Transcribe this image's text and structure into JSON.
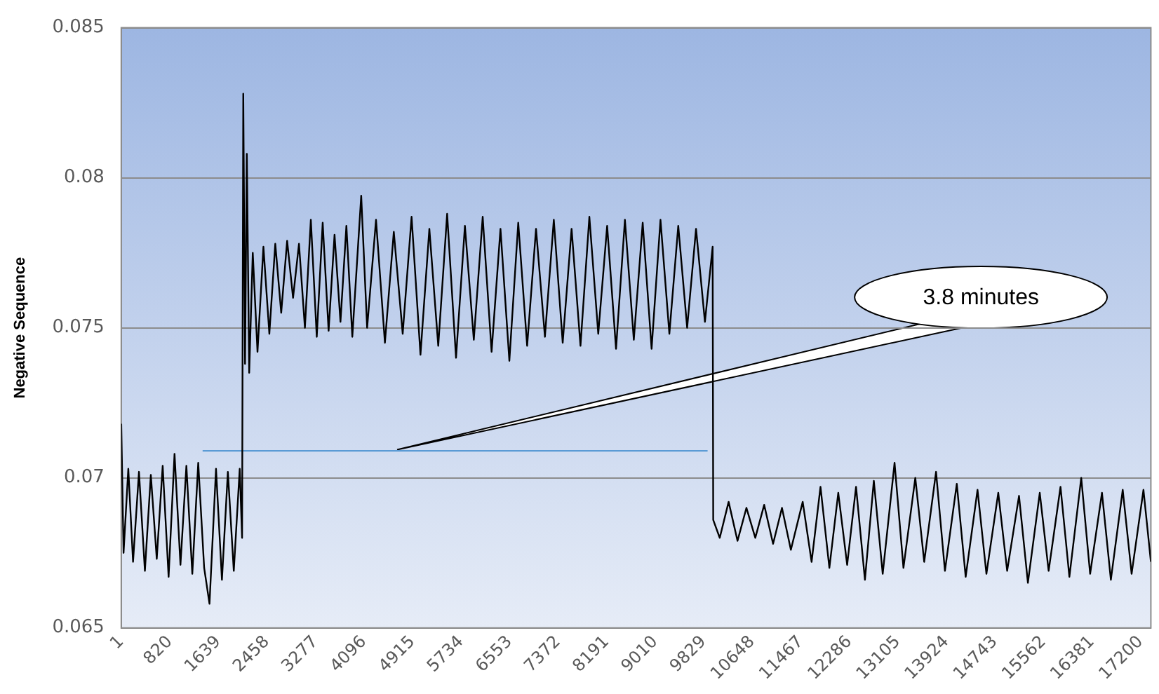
{
  "chart_data": {
    "type": "line",
    "ylabel": "Negative Sequence",
    "xlim": [
      1,
      17375
    ],
    "xticks": [
      1,
      820,
      1639,
      2458,
      3277,
      4096,
      4915,
      5734,
      6553,
      7372,
      8191,
      9010,
      9829,
      10648,
      11467,
      12286,
      13105,
      13924,
      14743,
      15562,
      16381,
      17200
    ],
    "ylim": [
      0.065,
      0.085
    ],
    "yticks": [
      0.065,
      0.07,
      0.075,
      0.08,
      0.085
    ],
    "grid": "y",
    "legend": false,
    "marker": "none",
    "series": [
      {
        "color": "#000000",
        "x": [
          1,
          40,
          120,
          200,
          300,
          400,
          500,
          600,
          700,
          800,
          900,
          1000,
          1100,
          1200,
          1300,
          1400,
          1490,
          1600,
          1700,
          1800,
          1900,
          2000,
          2040,
          2060,
          2090,
          2120,
          2160,
          2220,
          2300,
          2400,
          2500,
          2600,
          2700,
          2800,
          2900,
          3000,
          3100,
          3200,
          3300,
          3400,
          3500,
          3600,
          3700,
          3800,
          3900,
          4050,
          4150,
          4300,
          4450,
          4600,
          4750,
          4900,
          5050,
          5200,
          5350,
          5500,
          5650,
          5800,
          5950,
          6100,
          6250,
          6400,
          6550,
          6700,
          6850,
          7000,
          7150,
          7300,
          7450,
          7600,
          7750,
          7900,
          8050,
          8200,
          8350,
          8500,
          8650,
          8800,
          8950,
          9100,
          9250,
          9400,
          9550,
          9700,
          9850,
          9980,
          9990,
          10100,
          10250,
          10400,
          10550,
          10700,
          10850,
          11000,
          11150,
          11300,
          11500,
          11650,
          11800,
          11950,
          12100,
          12250,
          12400,
          12550,
          12700,
          12850,
          13050,
          13200,
          13400,
          13550,
          13750,
          13900,
          14100,
          14250,
          14450,
          14600,
          14800,
          14950,
          15150,
          15300,
          15500,
          15650,
          15850,
          16000,
          16200,
          16350,
          16550,
          16700,
          16900,
          17050,
          17250,
          17375
        ],
        "values": [
          0.0718,
          0.0675,
          0.0703,
          0.0672,
          0.0702,
          0.0669,
          0.0701,
          0.0673,
          0.0704,
          0.0667,
          0.0708,
          0.0671,
          0.0704,
          0.0668,
          0.0705,
          0.067,
          0.0658,
          0.0703,
          0.0666,
          0.0702,
          0.0669,
          0.0703,
          0.068,
          0.0828,
          0.0738,
          0.0808,
          0.0735,
          0.0775,
          0.0742,
          0.0777,
          0.0748,
          0.0778,
          0.0755,
          0.0779,
          0.076,
          0.0778,
          0.075,
          0.0786,
          0.0747,
          0.0785,
          0.0749,
          0.0781,
          0.0752,
          0.0784,
          0.0747,
          0.0794,
          0.075,
          0.0786,
          0.0745,
          0.0782,
          0.0748,
          0.0787,
          0.0741,
          0.0783,
          0.0744,
          0.0788,
          0.074,
          0.0784,
          0.0746,
          0.0787,
          0.0742,
          0.0783,
          0.0739,
          0.0785,
          0.0744,
          0.0783,
          0.0747,
          0.0786,
          0.0745,
          0.0783,
          0.0744,
          0.0787,
          0.0748,
          0.0784,
          0.0743,
          0.0786,
          0.0746,
          0.0785,
          0.0743,
          0.0786,
          0.0748,
          0.0784,
          0.075,
          0.0783,
          0.0752,
          0.0777,
          0.0686,
          0.068,
          0.0692,
          0.0679,
          0.069,
          0.068,
          0.0691,
          0.0678,
          0.069,
          0.0676,
          0.0692,
          0.0672,
          0.0697,
          0.067,
          0.0695,
          0.0671,
          0.0697,
          0.0666,
          0.0699,
          0.0668,
          0.0705,
          0.067,
          0.07,
          0.0672,
          0.0702,
          0.0669,
          0.0698,
          0.0667,
          0.0696,
          0.0668,
          0.0695,
          0.0669,
          0.0694,
          0.0665,
          0.0695,
          0.0669,
          0.0697,
          0.0667,
          0.07,
          0.0668,
          0.0695,
          0.0666,
          0.0696,
          0.0668,
          0.0696,
          0.0672
        ]
      },
      {
        "color": "#5b9bd5",
        "x": [
          1374,
          9895
        ],
        "values": [
          0.0709,
          0.0709
        ]
      }
    ],
    "annotations": [
      "3.8 minutes"
    ]
  }
}
